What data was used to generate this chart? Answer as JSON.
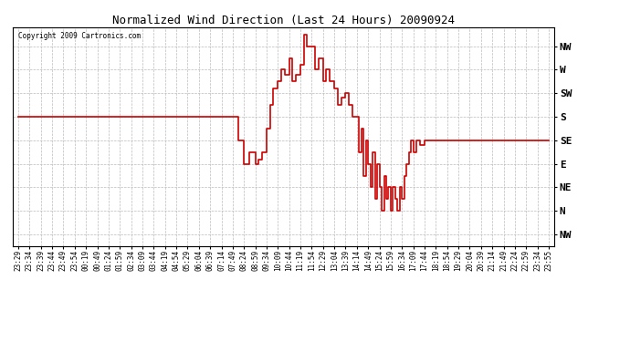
{
  "title": "Normalized Wind Direction (Last 24 Hours) 20090924",
  "copyright": "Copyright 2009 Cartronics.com",
  "line_color": "#cc0000",
  "bg_color": "#ffffff",
  "grid_color": "#bbbbbb",
  "ytick_labels": [
    "NW",
    "W",
    "SW",
    "S",
    "SE",
    "E",
    "NE",
    "N",
    "NW"
  ],
  "ytick_values": [
    8,
    7,
    6,
    5,
    4,
    3,
    2,
    1,
    0
  ],
  "ylim": [
    -0.5,
    8.8
  ],
  "xtick_labels": [
    "23:29",
    "23:34",
    "23:39",
    "23:44",
    "23:49",
    "23:54",
    "00:19",
    "00:49",
    "01:24",
    "01:59",
    "02:34",
    "03:09",
    "03:44",
    "04:19",
    "04:54",
    "05:29",
    "06:04",
    "06:39",
    "07:14",
    "07:49",
    "08:24",
    "08:59",
    "09:34",
    "10:09",
    "10:44",
    "11:19",
    "11:54",
    "12:29",
    "13:04",
    "13:39",
    "14:14",
    "14:49",
    "15:24",
    "15:59",
    "16:34",
    "17:09",
    "17:44",
    "18:19",
    "18:54",
    "19:29",
    "20:04",
    "20:39",
    "21:14",
    "21:49",
    "22:24",
    "22:59",
    "23:34",
    "23:55"
  ],
  "wind_x": [
    0,
    1,
    2,
    3,
    4,
    5,
    6,
    7,
    8,
    9,
    10,
    11,
    12,
    13,
    14,
    15,
    16,
    17,
    18,
    19,
    19.5,
    20,
    20.5,
    21,
    21.3,
    21.6,
    22,
    22.3,
    22.6,
    23,
    23.3,
    23.6,
    24,
    24.3,
    24.6,
    25,
    25.3,
    25.6,
    26,
    26.3,
    26.6,
    27,
    27.3,
    27.6,
    28,
    28.3,
    28.6,
    29,
    29.3,
    29.6,
    30,
    30.2,
    30.4,
    30.6,
    30.8,
    31,
    31.2,
    31.4,
    31.6,
    31.8,
    32,
    32.2,
    32.4,
    32.6,
    32.8,
    33,
    33.2,
    33.4,
    33.6,
    33.8,
    34,
    34.2,
    34.4,
    34.6,
    34.8,
    35,
    35.3,
    35.6,
    36,
    36.5,
    37,
    37.5,
    38,
    39,
    40,
    41,
    42,
    43,
    44,
    45,
    46,
    47
  ],
  "wind_y": [
    5,
    5,
    5,
    5,
    5,
    5,
    5,
    5,
    5,
    5,
    5,
    5,
    5,
    5,
    5,
    5,
    5,
    5,
    5,
    5,
    4.0,
    3.0,
    3.5,
    3.0,
    3.2,
    3.5,
    4.5,
    5.5,
    6.2,
    6.5,
    7.0,
    6.8,
    7.5,
    6.5,
    6.8,
    7.2,
    8.5,
    8.0,
    8.0,
    7.0,
    7.5,
    6.5,
    7.0,
    6.5,
    6.2,
    5.5,
    5.8,
    6.0,
    5.5,
    5.0,
    5.0,
    3.5,
    4.5,
    2.5,
    4.0,
    3.0,
    2.0,
    3.5,
    1.5,
    3.0,
    2.0,
    1.0,
    2.5,
    1.5,
    2.0,
    1.0,
    2.0,
    1.5,
    1.0,
    2.0,
    1.5,
    2.5,
    3.0,
    3.5,
    4.0,
    3.5,
    4.0,
    3.8,
    4.0,
    4.0,
    4.0,
    4.0,
    4.0,
    4.0,
    4.0,
    4.0,
    4.0,
    4.0,
    4.0,
    4.0,
    4.0,
    4.0
  ],
  "line_width": 1.2,
  "title_fontsize": 9,
  "tick_fontsize": 5.5,
  "ytick_fontsize": 8
}
